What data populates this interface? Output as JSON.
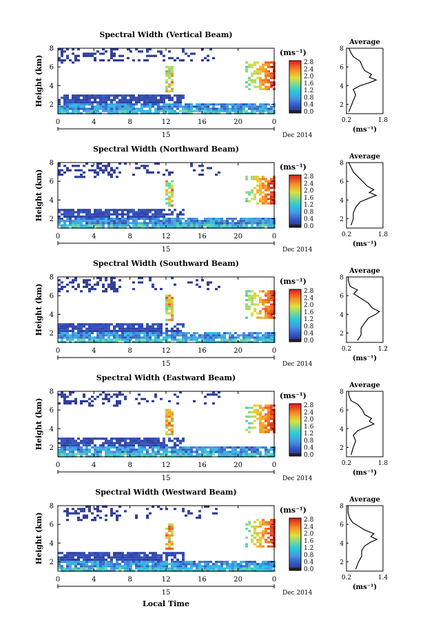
{
  "figure": {
    "xlabel_bottom": "Local Time",
    "date_label": "Dec 2014",
    "day_label": "15"
  },
  "chart_data": [
    {
      "type": "heatmap",
      "title": "Spectral Width (Vertical Beam)",
      "ylabel": "Height (km)",
      "yticks": [
        "2",
        "4",
        "6",
        "8"
      ],
      "ylim": [
        1,
        8
      ],
      "xticks": [
        "0",
        "4",
        "8",
        "12",
        "16",
        "20",
        "0"
      ],
      "xlim": [
        0,
        24
      ],
      "colorbar_unit": "(ms⁻¹)",
      "colorbar_ticks": [
        "0.0",
        "0.4",
        "0.8",
        "1.2",
        "1.6",
        "2.0",
        "2.4",
        "2.8"
      ],
      "colorbar_range": [
        0.0,
        2.8
      ],
      "average_title": "Average",
      "average_xticks": [
        "0.2",
        "1.8"
      ],
      "average_xlim": [
        0.2,
        1.8
      ],
      "average_yticks": [
        "2",
        "4",
        "6",
        "8"
      ],
      "average_xlabel": "(ms⁻¹)",
      "average_profile": [
        [
          0.3,
          1.2
        ],
        [
          0.4,
          1.8
        ],
        [
          0.5,
          2.4
        ],
        [
          0.6,
          3.0
        ],
        [
          0.5,
          3.6
        ],
        [
          0.8,
          4.0
        ],
        [
          1.2,
          4.3
        ],
        [
          1.5,
          4.6
        ],
        [
          1.2,
          4.9
        ],
        [
          1.3,
          5.2
        ],
        [
          1.0,
          5.6
        ],
        [
          0.9,
          6.0
        ],
        [
          0.8,
          6.6
        ],
        [
          0.5,
          7.1
        ],
        [
          0.4,
          7.5
        ],
        [
          0.3,
          8.0
        ]
      ]
    },
    {
      "type": "heatmap",
      "title": "Spectral Width (Northward Beam)",
      "ylabel": "Height (km)",
      "yticks": [
        "2",
        "4",
        "6",
        "8"
      ],
      "ylim": [
        1,
        8
      ],
      "xticks": [
        "0",
        "4",
        "8",
        "12",
        "16",
        "20",
        "0"
      ],
      "xlim": [
        0,
        24
      ],
      "colorbar_unit": "(ms⁻¹)",
      "colorbar_ticks": [
        "0.0",
        "0.4",
        "0.8",
        "1.2",
        "1.6",
        "2.0",
        "2.4",
        "2.8"
      ],
      "colorbar_range": [
        0.0,
        2.8
      ],
      "average_title": "Average",
      "average_xticks": [
        "0.2",
        "1.8"
      ],
      "average_xlim": [
        0.2,
        1.8
      ],
      "average_yticks": [
        "2",
        "4",
        "6",
        "8"
      ],
      "average_xlabel": "(ms⁻¹)",
      "average_profile": [
        [
          0.4,
          1.3
        ],
        [
          0.5,
          2.0
        ],
        [
          0.5,
          2.6
        ],
        [
          0.6,
          3.2
        ],
        [
          0.8,
          3.8
        ],
        [
          1.2,
          4.2
        ],
        [
          1.5,
          4.5
        ],
        [
          1.2,
          4.8
        ],
        [
          1.4,
          5.1
        ],
        [
          1.1,
          5.5
        ],
        [
          0.9,
          6.0
        ],
        [
          0.7,
          6.5
        ],
        [
          0.5,
          7.0
        ],
        [
          0.4,
          7.5
        ],
        [
          0.3,
          8.0
        ]
      ]
    },
    {
      "type": "heatmap",
      "title": "Spectral Width (Southward Beam)",
      "ylabel": "Height (km)",
      "yticks": [
        "2",
        "4",
        "6",
        "8"
      ],
      "ylim": [
        1,
        8
      ],
      "xticks": [
        "0",
        "4",
        "8",
        "12",
        "16",
        "20",
        "0"
      ],
      "xlim": [
        0,
        24
      ],
      "colorbar_unit": "(ms⁻¹)",
      "colorbar_ticks": [
        "0.0",
        "0.4",
        "0.8",
        "1.2",
        "1.6",
        "2.0",
        "2.4",
        "2.8"
      ],
      "colorbar_range": [
        0.0,
        2.8
      ],
      "average_title": "Average",
      "average_xticks": [
        "0.2",
        "1.2"
      ],
      "average_xlim": [
        0.2,
        1.2
      ],
      "average_yticks": [
        "2",
        "4",
        "6",
        "8"
      ],
      "average_xlabel": "(ms⁻¹)",
      "average_profile": [
        [
          0.5,
          1.2
        ],
        [
          0.6,
          1.8
        ],
        [
          0.6,
          2.5
        ],
        [
          0.7,
          3.1
        ],
        [
          0.8,
          3.6
        ],
        [
          1.0,
          4.0
        ],
        [
          1.1,
          4.3
        ],
        [
          0.9,
          4.7
        ],
        [
          0.8,
          5.2
        ],
        [
          0.6,
          5.7
        ],
        [
          0.4,
          6.2
        ],
        [
          0.5,
          6.6
        ],
        [
          0.3,
          7.0
        ],
        [
          0.25,
          7.6
        ],
        [
          0.25,
          8.0
        ]
      ]
    },
    {
      "type": "heatmap",
      "title": "Spectral Width (Eastward Beam)",
      "ylabel": "Height (km)",
      "yticks": [
        "2",
        "4",
        "6",
        "8"
      ],
      "ylim": [
        1,
        8
      ],
      "xticks": [
        "0",
        "4",
        "8",
        "12",
        "16",
        "20",
        "0"
      ],
      "xlim": [
        0,
        24
      ],
      "colorbar_unit": "(ms⁻¹)",
      "colorbar_ticks": [
        "0.0",
        "0.4",
        "0.8",
        "1.2",
        "1.6",
        "2.0",
        "2.4",
        "2.8"
      ],
      "colorbar_range": [
        0.0,
        2.8
      ],
      "average_title": "Average",
      "average_xticks": [
        "0.2",
        "1.8"
      ],
      "average_xlim": [
        0.2,
        1.8
      ],
      "average_yticks": [
        "2",
        "4",
        "6",
        "8"
      ],
      "average_xlabel": "(ms⁻¹)",
      "average_profile": [
        [
          0.4,
          1.2
        ],
        [
          0.5,
          2.0
        ],
        [
          0.6,
          2.7
        ],
        [
          0.5,
          3.3
        ],
        [
          0.7,
          3.8
        ],
        [
          1.1,
          4.2
        ],
        [
          1.4,
          4.5
        ],
        [
          1.2,
          4.8
        ],
        [
          1.3,
          5.1
        ],
        [
          1.0,
          5.5
        ],
        [
          0.9,
          6.0
        ],
        [
          0.7,
          6.6
        ],
        [
          0.4,
          7.0
        ],
        [
          0.3,
          7.6
        ],
        [
          0.3,
          8.0
        ]
      ]
    },
    {
      "type": "heatmap",
      "title": "Spectral Width (Westward Beam)",
      "ylabel": "Height (km)",
      "yticks": [
        "2",
        "4",
        "6",
        "8"
      ],
      "ylim": [
        1,
        8
      ],
      "xticks": [
        "0",
        "4",
        "8",
        "12",
        "16",
        "20",
        "0"
      ],
      "xlim": [
        0,
        24
      ],
      "colorbar_unit": "(ms⁻¹)",
      "colorbar_ticks": [
        "0.0",
        "0.4",
        "0.8",
        "1.2",
        "1.6",
        "2.0",
        "2.4",
        "2.8"
      ],
      "colorbar_range": [
        0.0,
        2.8
      ],
      "average_title": "Average",
      "average_xticks": [
        "0.2",
        "1.4"
      ],
      "average_xlim": [
        0.2,
        1.4
      ],
      "average_yticks": [
        "2",
        "4",
        "6",
        "8"
      ],
      "average_xlabel": "(ms⁻¹)",
      "average_profile": [
        [
          0.5,
          1.2
        ],
        [
          0.6,
          2.0
        ],
        [
          0.7,
          2.6
        ],
        [
          0.7,
          3.2
        ],
        [
          0.8,
          3.7
        ],
        [
          1.0,
          4.1
        ],
        [
          1.2,
          4.4
        ],
        [
          1.0,
          4.7
        ],
        [
          1.1,
          5.0
        ],
        [
          0.8,
          5.4
        ],
        [
          0.6,
          5.8
        ],
        [
          0.4,
          6.2
        ],
        [
          0.3,
          6.7
        ],
        [
          0.25,
          7.3
        ],
        [
          0.25,
          8.0
        ]
      ]
    }
  ]
}
